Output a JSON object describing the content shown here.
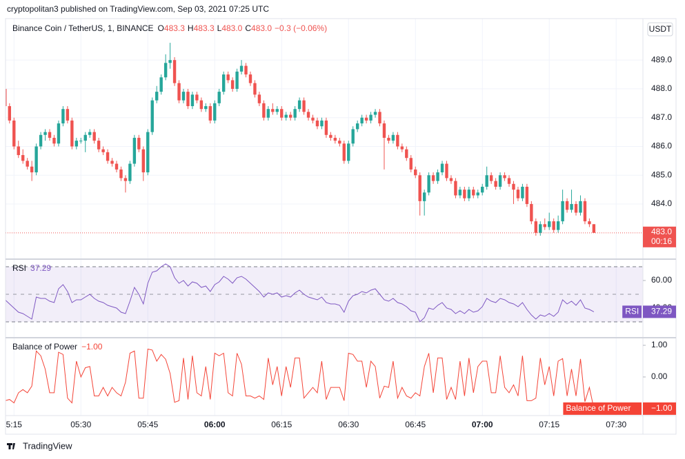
{
  "header": {
    "text": "cryptopolitan3 published on TradingView.com, Sep 03, 2021 07:25 UTC"
  },
  "footer": {
    "brand": "TradingView"
  },
  "chart_data": [
    {
      "type": "candlestick",
      "title": "Binance Coin / TetherUS, 1, BINANCE",
      "legend": {
        "o_label": "O",
        "o": "483.3",
        "h_label": "H",
        "h": "483.3",
        "l_label": "L",
        "l": "483.0",
        "c_label": "C",
        "c": "483.0",
        "change": "−0.3 (−0.06%)"
      },
      "currency": "USDT",
      "up_color": "#26a69a",
      "down_color": "#ef5350",
      "last_price": {
        "value": 483.0,
        "label": "483.0",
        "countdown": "00:16"
      },
      "xlim": [
        313.1,
        456
      ],
      "xticks": [
        {
          "value": 315,
          "label": "5:15"
        },
        {
          "value": 330,
          "label": "05:30"
        },
        {
          "value": 345,
          "label": "05:45"
        },
        {
          "value": 360,
          "label": "06:00",
          "bold": true
        },
        {
          "value": 375,
          "label": "06:15"
        },
        {
          "value": 390,
          "label": "06:30"
        },
        {
          "value": 405,
          "label": "06:45"
        },
        {
          "value": 420,
          "label": "07:00",
          "bold": true
        },
        {
          "value": 435,
          "label": "07:15"
        },
        {
          "value": 450,
          "label": "07:30"
        }
      ],
      "ylim": [
        482.11,
        490.44
      ],
      "yticks": [
        {
          "value": 484,
          "label": "484.0"
        },
        {
          "value": 485,
          "label": "485.0"
        },
        {
          "value": 486,
          "label": "486.0"
        },
        {
          "value": 487,
          "label": "487.0"
        },
        {
          "value": 488,
          "label": "488.0"
        },
        {
          "value": 489,
          "label": "489.0"
        }
      ],
      "grid": true,
      "x": [
        313,
        314,
        315,
        316,
        317,
        318,
        319,
        320,
        321,
        322,
        323,
        324,
        325,
        326,
        327,
        328,
        329,
        330,
        331,
        332,
        333,
        334,
        335,
        336,
        337,
        338,
        339,
        340,
        341,
        342,
        343,
        344,
        345,
        346,
        347,
        348,
        349,
        350,
        351,
        352,
        353,
        354,
        355,
        356,
        357,
        358,
        359,
        360,
        361,
        362,
        363,
        364,
        365,
        366,
        367,
        368,
        369,
        370,
        371,
        372,
        373,
        374,
        375,
        376,
        377,
        378,
        379,
        380,
        381,
        382,
        383,
        384,
        385,
        386,
        387,
        388,
        389,
        390,
        391,
        392,
        393,
        394,
        395,
        396,
        397,
        398,
        399,
        400,
        401,
        402,
        403,
        404,
        405,
        406,
        407,
        408,
        409,
        410,
        411,
        412,
        413,
        414,
        415,
        416,
        417,
        418,
        419,
        420,
        421,
        422,
        423,
        424,
        425,
        426,
        427,
        428,
        429,
        430,
        431,
        432,
        433,
        434,
        435,
        436,
        437,
        438,
        439,
        440,
        441,
        442,
        443,
        444,
        445
      ],
      "ohlc": [
        [
          488.0,
          488.1,
          487.3,
          487.4
        ],
        [
          487.4,
          487.5,
          486.8,
          486.9
        ],
        [
          486.9,
          487.0,
          485.9,
          486.0
        ],
        [
          486.0,
          486.2,
          485.6,
          485.7
        ],
        [
          485.7,
          485.9,
          485.4,
          485.5
        ],
        [
          485.5,
          485.6,
          485.2,
          485.3
        ],
        [
          485.3,
          485.5,
          484.8,
          485.1
        ],
        [
          485.1,
          486.1,
          485.0,
          486.0
        ],
        [
          486.0,
          486.5,
          485.9,
          486.4
        ],
        [
          486.4,
          486.6,
          486.2,
          486.5
        ],
        [
          486.5,
          486.6,
          486.2,
          486.3
        ],
        [
          486.3,
          486.4,
          486.0,
          486.1
        ],
        [
          486.1,
          486.9,
          486.0,
          486.8
        ],
        [
          486.8,
          487.4,
          486.7,
          487.3
        ],
        [
          487.3,
          487.4,
          486.8,
          486.9
        ],
        [
          486.9,
          487.0,
          485.9,
          486.0
        ],
        [
          486.0,
          486.3,
          485.9,
          486.2
        ],
        [
          486.2,
          486.3,
          486.1,
          486.2
        ],
        [
          486.2,
          486.5,
          485.8,
          486.4
        ],
        [
          486.4,
          486.6,
          486.3,
          486.5
        ],
        [
          486.5,
          486.6,
          486.1,
          486.2
        ],
        [
          486.2,
          486.3,
          485.8,
          485.9
        ],
        [
          485.9,
          486.0,
          485.7,
          485.8
        ],
        [
          485.8,
          485.9,
          485.4,
          485.5
        ],
        [
          485.5,
          485.6,
          485.3,
          485.4
        ],
        [
          485.4,
          485.5,
          485.1,
          485.2
        ],
        [
          485.2,
          485.3,
          484.8,
          484.9
        ],
        [
          484.9,
          485.0,
          484.4,
          484.8
        ],
        [
          484.8,
          485.5,
          484.7,
          485.4
        ],
        [
          485.4,
          486.4,
          485.3,
          486.3
        ],
        [
          486.3,
          486.4,
          485.8,
          485.9
        ],
        [
          485.9,
          486.0,
          484.8,
          485.1
        ],
        [
          485.1,
          486.6,
          485.0,
          486.5
        ],
        [
          486.5,
          487.7,
          486.4,
          487.6
        ],
        [
          487.6,
          488.1,
          487.5,
          487.9
        ],
        [
          487.9,
          488.5,
          487.8,
          488.4
        ],
        [
          488.4,
          489.2,
          488.3,
          488.9
        ],
        [
          488.9,
          489.6,
          488.7,
          489.0
        ],
        [
          489.0,
          489.1,
          488.1,
          488.2
        ],
        [
          488.2,
          488.3,
          487.5,
          487.6
        ],
        [
          487.6,
          488.0,
          487.5,
          487.9
        ],
        [
          487.9,
          488.0,
          487.3,
          487.4
        ],
        [
          487.4,
          487.9,
          487.3,
          487.8
        ],
        [
          487.8,
          487.9,
          487.5,
          487.6
        ],
        [
          487.6,
          487.7,
          487.2,
          487.3
        ],
        [
          487.3,
          487.5,
          487.2,
          487.4
        ],
        [
          487.4,
          487.5,
          486.8,
          486.9
        ],
        [
          486.9,
          487.6,
          486.8,
          487.5
        ],
        [
          487.5,
          488.0,
          487.4,
          487.9
        ],
        [
          487.9,
          488.6,
          487.8,
          488.5
        ],
        [
          488.5,
          488.6,
          488.2,
          488.3
        ],
        [
          488.3,
          488.4,
          487.9,
          488.0
        ],
        [
          488.0,
          488.7,
          487.9,
          488.6
        ],
        [
          488.6,
          489.0,
          488.5,
          488.8
        ],
        [
          488.8,
          488.9,
          488.4,
          488.5
        ],
        [
          488.5,
          488.6,
          488.1,
          488.2
        ],
        [
          488.2,
          488.3,
          487.7,
          487.8
        ],
        [
          487.8,
          487.9,
          487.4,
          487.5
        ],
        [
          487.5,
          487.6,
          486.9,
          487.0
        ],
        [
          487.0,
          487.4,
          486.9,
          487.3
        ],
        [
          487.3,
          487.5,
          487.1,
          487.2
        ],
        [
          487.2,
          487.4,
          487.1,
          487.3
        ],
        [
          487.3,
          487.4,
          486.9,
          487.0
        ],
        [
          487.0,
          487.2,
          486.9,
          487.1
        ],
        [
          487.1,
          487.2,
          486.9,
          487.0
        ],
        [
          487.0,
          487.4,
          486.9,
          487.3
        ],
        [
          487.3,
          487.7,
          487.2,
          487.6
        ],
        [
          487.6,
          487.7,
          487.1,
          487.2
        ],
        [
          487.2,
          487.3,
          486.9,
          487.0
        ],
        [
          487.0,
          487.1,
          486.8,
          486.9
        ],
        [
          486.9,
          487.0,
          486.6,
          486.7
        ],
        [
          486.7,
          487.0,
          486.6,
          486.9
        ],
        [
          486.9,
          487.0,
          486.3,
          486.4
        ],
        [
          486.4,
          486.5,
          486.2,
          486.3
        ],
        [
          486.3,
          486.4,
          486.1,
          486.2
        ],
        [
          486.2,
          486.3,
          486.0,
          486.1
        ],
        [
          486.1,
          486.2,
          485.4,
          485.5
        ],
        [
          485.5,
          486.2,
          485.4,
          486.1
        ],
        [
          486.1,
          486.7,
          486.0,
          486.6
        ],
        [
          486.6,
          486.9,
          486.5,
          486.8
        ],
        [
          486.8,
          487.1,
          486.7,
          487.0
        ],
        [
          487.0,
          487.1,
          486.8,
          486.9
        ],
        [
          486.9,
          487.2,
          486.8,
          487.1
        ],
        [
          487.1,
          487.3,
          487.0,
          487.2
        ],
        [
          487.2,
          487.3,
          486.7,
          486.8
        ],
        [
          486.8,
          486.9,
          485.2,
          486.3
        ],
        [
          486.3,
          486.4,
          486.1,
          486.2
        ],
        [
          486.2,
          486.5,
          486.1,
          486.4
        ],
        [
          486.4,
          486.5,
          485.9,
          486.0
        ],
        [
          486.0,
          486.1,
          485.8,
          485.9
        ],
        [
          485.9,
          486.0,
          485.5,
          485.6
        ],
        [
          485.6,
          485.7,
          485.1,
          485.2
        ],
        [
          485.2,
          485.3,
          484.9,
          485.0
        ],
        [
          485.0,
          485.1,
          483.6,
          484.1
        ],
        [
          484.1,
          484.5,
          483.6,
          484.4
        ],
        [
          484.4,
          485.1,
          484.3,
          485.0
        ],
        [
          485.0,
          485.1,
          484.7,
          484.8
        ],
        [
          484.8,
          485.2,
          484.7,
          485.1
        ],
        [
          485.1,
          485.5,
          485.0,
          485.4
        ],
        [
          485.4,
          485.5,
          484.8,
          484.9
        ],
        [
          484.9,
          485.0,
          484.7,
          484.8
        ],
        [
          484.8,
          484.9,
          484.2,
          484.3
        ],
        [
          484.3,
          484.6,
          484.2,
          484.5
        ],
        [
          484.5,
          484.6,
          484.1,
          484.2
        ],
        [
          484.2,
          484.6,
          484.1,
          484.5
        ],
        [
          484.5,
          484.6,
          484.2,
          484.3
        ],
        [
          484.3,
          484.5,
          484.2,
          484.4
        ],
        [
          484.4,
          484.7,
          484.3,
          484.6
        ],
        [
          484.6,
          485.3,
          484.5,
          485.0
        ],
        [
          485.0,
          485.1,
          484.7,
          484.8
        ],
        [
          484.8,
          484.9,
          484.5,
          484.6
        ],
        [
          484.6,
          485.1,
          484.5,
          485.0
        ],
        [
          485.0,
          485.1,
          484.8,
          484.9
        ],
        [
          484.9,
          485.0,
          484.6,
          484.7
        ],
        [
          484.7,
          484.8,
          484.0,
          484.5
        ],
        [
          484.5,
          484.6,
          484.1,
          484.2
        ],
        [
          484.2,
          484.7,
          484.1,
          484.6
        ],
        [
          484.6,
          484.7,
          483.9,
          484.0
        ],
        [
          484.0,
          484.1,
          483.3,
          483.4
        ],
        [
          483.4,
          483.5,
          482.9,
          483.0
        ],
        [
          483.0,
          483.4,
          482.9,
          483.3
        ],
        [
          483.3,
          483.5,
          483.1,
          483.2
        ],
        [
          483.2,
          483.7,
          483.1,
          483.4
        ],
        [
          483.4,
          483.5,
          483.0,
          483.1
        ],
        [
          483.1,
          483.6,
          483.0,
          483.4
        ],
        [
          483.4,
          484.5,
          483.3,
          484.1
        ],
        [
          484.1,
          484.2,
          483.7,
          483.8
        ],
        [
          483.8,
          484.5,
          483.7,
          484.0
        ],
        [
          484.0,
          484.1,
          483.6,
          483.7
        ],
        [
          483.7,
          484.3,
          483.6,
          484.1
        ],
        [
          484.1,
          484.2,
          483.3,
          483.4
        ],
        [
          483.4,
          483.5,
          483.2,
          483.3
        ],
        [
          483.3,
          483.3,
          483.0,
          483.0
        ]
      ]
    },
    {
      "type": "line",
      "title": "RSI",
      "value_label": "37.29",
      "color": "#7e57c2",
      "band": {
        "upper": 70,
        "middle": 50,
        "lower": 30
      },
      "ylim": [
        18.5,
        74.5
      ],
      "yticks": [
        {
          "value": 60,
          "label": "60.00"
        },
        {
          "value": 40,
          "label": "40.00"
        }
      ],
      "values": [
        46,
        43,
        40,
        37,
        36,
        34,
        32,
        48,
        47,
        47,
        45,
        44,
        54,
        57,
        52,
        44,
        46,
        46,
        48,
        50,
        47,
        45,
        44,
        42,
        41,
        40,
        37,
        36,
        45,
        55,
        50,
        43,
        58,
        66,
        67,
        70,
        72,
        70,
        62,
        58,
        60,
        56,
        59,
        58,
        55,
        56,
        52,
        57,
        59,
        63,
        61,
        58,
        62,
        63,
        61,
        58,
        55,
        52,
        48,
        51,
        50,
        51,
        48,
        49,
        48,
        51,
        53,
        50,
        48,
        47,
        46,
        48,
        44,
        43,
        43,
        42,
        37,
        45,
        49,
        50,
        52,
        51,
        53,
        54,
        50,
        46,
        45,
        47,
        44,
        43,
        41,
        38,
        37,
        30,
        33,
        40,
        39,
        42,
        44,
        40,
        39,
        36,
        38,
        36,
        39,
        37,
        38,
        41,
        47,
        45,
        44,
        47,
        46,
        44,
        43,
        41,
        44,
        39,
        35,
        32,
        35,
        34,
        36,
        34,
        37,
        46,
        43,
        45,
        42,
        46,
        40,
        39,
        37.29
      ]
    },
    {
      "type": "line",
      "title": "Balance of Power",
      "value_label": "−1.00",
      "color": "#f44336",
      "ylim": [
        -1.22,
        1.24
      ],
      "yticks": [
        {
          "value": 1,
          "label": "1.00"
        },
        {
          "value": 0,
          "label": "0.00"
        },
        {
          "value": -1,
          "label": "−1.00"
        }
      ],
      "values": [
        -0.75,
        -0.71,
        -0.82,
        -0.5,
        -0.4,
        -0.5,
        -0.29,
        0.82,
        0.67,
        0.25,
        -0.5,
        -0.5,
        0.78,
        0.71,
        -0.67,
        -0.82,
        0.5,
        0,
        0.29,
        0.33,
        -0.6,
        -0.6,
        -0.33,
        -0.6,
        -0.33,
        -0.5,
        -0.6,
        -0.17,
        0.75,
        0.82,
        -0.67,
        -0.67,
        0.88,
        0.85,
        0.5,
        0.71,
        0.56,
        0.11,
        -0.8,
        -0.75,
        0.6,
        -0.71,
        0.67,
        -0.5,
        -0.6,
        0.33,
        -0.71,
        0.75,
        0.67,
        0.75,
        -0.5,
        -0.6,
        0.75,
        0.4,
        -0.6,
        -0.6,
        -0.67,
        -0.6,
        -0.71,
        0.6,
        -0.25,
        0.33,
        -0.6,
        0.33,
        -0.33,
        0.6,
        0.6,
        -0.67,
        -0.5,
        -0.33,
        -0.5,
        0.5,
        -0.71,
        -0.33,
        -0.33,
        -0.33,
        -0.75,
        0.75,
        0.71,
        0.5,
        0.5,
        -0.33,
        0.5,
        0.33,
        -0.67,
        -0.29,
        -0.33,
        0.5,
        -0.67,
        -0.33,
        -0.6,
        -0.67,
        -0.5,
        -0.6,
        0.33,
        0.75,
        -0.5,
        0.6,
        0.6,
        -0.71,
        -0.33,
        -0.71,
        0.5,
        -0.6,
        0.6,
        -0.5,
        0.33,
        0.5,
        0.5,
        -0.5,
        -0.5,
        0.67,
        -0.33,
        -0.5,
        -0.25,
        -0.6,
        0.67,
        -0.75,
        -0.75,
        -0.67,
        0.6,
        -0.25,
        0.33,
        -0.6,
        0.5,
        0.58,
        -0.6,
        0.25,
        -0.6,
        0.57,
        -0.78,
        -0.33,
        -1.0
      ]
    }
  ]
}
